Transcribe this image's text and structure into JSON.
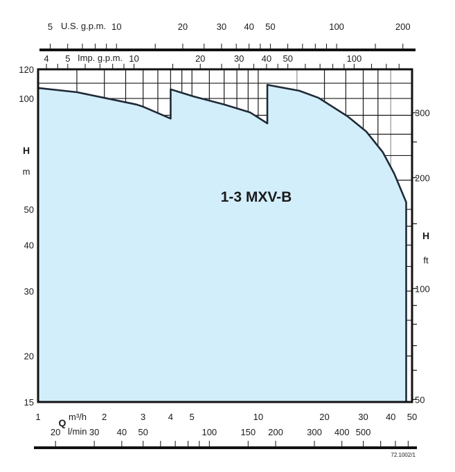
{
  "chart_data": {
    "type": "area",
    "title": "1-3 MXV-B",
    "x_scale": "log",
    "y_scale": "log",
    "xlim": [
      1,
      50
    ],
    "ylim": [
      15,
      120
    ],
    "grid": true,
    "colors": {
      "fill": "#d3eefb",
      "curve": "#1f2a36",
      "grid": "#1a1a1a",
      "grid_light": "#8a9399"
    },
    "xlabel": "Q",
    "xunit": "m³/h",
    "ylabel": "H",
    "yunit": "m",
    "x_ticks": [
      1,
      2,
      3,
      4,
      5,
      10,
      20,
      30,
      40,
      50
    ],
    "y_ticks": [
      120,
      100,
      50,
      40,
      30,
      20,
      15
    ],
    "x_grid": [
      1.5,
      2,
      2.5,
      3,
      3.5,
      4,
      4.5,
      5,
      6,
      7,
      8,
      9,
      10,
      15,
      20,
      25,
      30,
      35,
      40
    ],
    "y_grid": [
      110,
      100,
      90,
      80,
      70,
      60,
      50,
      45,
      40,
      35,
      30,
      25,
      20
    ],
    "series": [
      {
        "points": [
          [
            1,
            106.8
          ],
          [
            1.5,
            104.0
          ],
          [
            2,
            100.4
          ],
          [
            2.8,
            96.3
          ],
          [
            3,
            95
          ],
          [
            4,
            88.2
          ],
          [
            4,
            105.9
          ],
          [
            5.1,
            101.2
          ],
          [
            7,
            96.3
          ],
          [
            9.2,
            91.6
          ],
          [
            11,
            85.6
          ],
          [
            11,
            108.9
          ],
          [
            15.4,
            104.9
          ],
          [
            18.8,
            100.4
          ],
          [
            25.5,
            89.4
          ],
          [
            31,
            81.3
          ],
          [
            36.8,
            71.5
          ],
          [
            41.5,
            62.5
          ],
          [
            47,
            52.3
          ],
          [
            47,
            15
          ]
        ]
      }
    ],
    "right_axis": {
      "label": "H",
      "unit": "ft",
      "labels": [
        300,
        200,
        100,
        50
      ],
      "minor": [
        250,
        150,
        90,
        80,
        70,
        60
      ]
    },
    "top_axis_us": {
      "label": "U.S. g.p.m.",
      "labels": [
        5,
        10,
        20,
        30,
        40,
        50,
        100,
        200
      ],
      "minor": [
        6,
        7,
        8,
        9,
        15,
        25,
        35,
        45,
        60,
        70,
        80,
        90,
        150
      ]
    },
    "top_axis_imp": {
      "label": "Imp. g.p.m.",
      "labels": [
        4,
        5,
        10,
        20,
        30,
        40,
        50,
        100
      ],
      "minor": [
        4.5,
        6,
        7,
        8,
        9,
        15,
        25,
        35,
        45,
        60,
        70,
        80,
        90,
        120,
        140,
        160
      ]
    },
    "bottom_axis_lmin": {
      "label": "l/min",
      "labels": [
        20,
        30,
        40,
        50,
        100,
        150,
        200,
        300,
        400,
        500
      ],
      "minor": [
        60,
        70,
        80,
        90,
        600,
        700,
        800
      ]
    },
    "code": "72.1002/1"
  }
}
